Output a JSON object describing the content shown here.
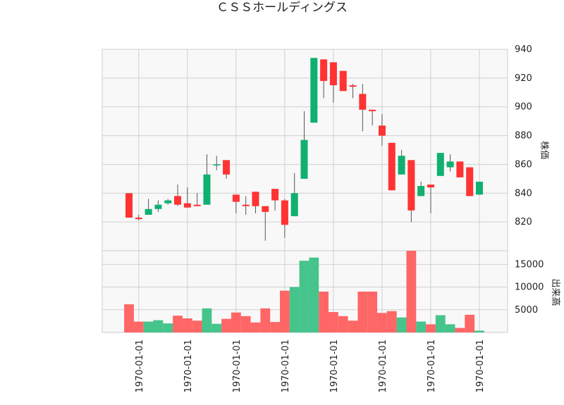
{
  "chart_data": {
    "type": "candlestick",
    "title": "ＣＳＳホールディングス",
    "price_panel": {
      "ylabel": "株価",
      "ylim": [
        800,
        940
      ],
      "yticks": [
        820,
        840,
        860,
        880,
        900,
        920,
        940
      ],
      "grid": true,
      "y_axis_side": "right"
    },
    "volume_panel": {
      "ylabel": "出来高",
      "ylim": [
        0,
        18000
      ],
      "yticks": [
        5000,
        10000,
        15000
      ],
      "grid": true,
      "y_axis_side": "right"
    },
    "x_tick_labels": [
      "1970-01-01",
      "1970-01-01",
      "1970-01-01",
      "1970-01-01",
      "1970-01-01",
      "1970-01-01",
      "1970-01-01",
      "1970-01-01"
    ],
    "x_tick_positions": [
      1,
      6,
      11,
      16,
      21,
      26,
      31,
      36
    ],
    "up_color": "#10b070",
    "down_color": "#ff3333",
    "up_volume_color": "#45c48c",
    "down_volume_color": "#ff6666",
    "candles": [
      {
        "open": 840,
        "high": 840,
        "low": 823,
        "close": 823,
        "volume": 6200
      },
      {
        "open": 823,
        "high": 825,
        "low": 821,
        "close": 822,
        "volume": 2400
      },
      {
        "open": 825,
        "high": 836,
        "low": 825,
        "close": 829,
        "volume": 2400
      },
      {
        "open": 829,
        "high": 835,
        "low": 827,
        "close": 832,
        "volume": 2700
      },
      {
        "open": 833,
        "high": 836,
        "low": 832,
        "close": 835,
        "volume": 2000
      },
      {
        "open": 838,
        "high": 846,
        "low": 831,
        "close": 832,
        "volume": 3700
      },
      {
        "open": 833,
        "high": 844,
        "low": 830,
        "close": 830,
        "volume": 3100
      },
      {
        "open": 832,
        "high": 840,
        "low": 831,
        "close": 831,
        "volume": 2600
      },
      {
        "open": 832,
        "high": 867,
        "low": 832,
        "close": 853,
        "volume": 5300
      },
      {
        "open": 860,
        "high": 866,
        "low": 856,
        "close": 860,
        "volume": 1900
      },
      {
        "open": 863,
        "high": 863,
        "low": 850,
        "close": 853,
        "volume": 3000
      },
      {
        "open": 839,
        "high": 839,
        "low": 826,
        "close": 834,
        "volume": 4400
      },
      {
        "open": 832,
        "high": 838,
        "low": 825,
        "close": 831,
        "volume": 3600
      },
      {
        "open": 841,
        "high": 841,
        "low": 826,
        "close": 831,
        "volume": 2200
      },
      {
        "open": 831,
        "high": 831,
        "low": 807,
        "close": 827,
        "volume": 5300
      },
      {
        "open": 843,
        "high": 843,
        "low": 828,
        "close": 835,
        "volume": 2300
      },
      {
        "open": 835,
        "high": 836,
        "low": 809,
        "close": 818,
        "volume": 9200
      },
      {
        "open": 824,
        "high": 854,
        "low": 824,
        "close": 840,
        "volume": 10000
      },
      {
        "open": 850,
        "high": 897,
        "low": 850,
        "close": 877,
        "volume": 15800
      },
      {
        "open": 889,
        "high": 934,
        "low": 889,
        "close": 934,
        "volume": 16500
      },
      {
        "open": 933,
        "high": 933,
        "low": 906,
        "close": 918,
        "volume": 9000
      },
      {
        "open": 931,
        "high": 931,
        "low": 903,
        "close": 915,
        "volume": 4500
      },
      {
        "open": 925,
        "high": 925,
        "low": 911,
        "close": 911,
        "volume": 3600
      },
      {
        "open": 915,
        "high": 916,
        "low": 906,
        "close": 914,
        "volume": 2600
      },
      {
        "open": 909,
        "high": 916,
        "low": 883,
        "close": 898,
        "volume": 9000
      },
      {
        "open": 898,
        "high": 898,
        "low": 887,
        "close": 897,
        "volume": 9000
      },
      {
        "open": 887,
        "high": 895,
        "low": 873,
        "close": 880,
        "volume": 4300
      },
      {
        "open": 875,
        "high": 875,
        "low": 842,
        "close": 842,
        "volume": 4700
      },
      {
        "open": 853,
        "high": 870,
        "low": 853,
        "close": 866,
        "volume": 3300
      },
      {
        "open": 863,
        "high": 863,
        "low": 820,
        "close": 828,
        "volume": 18200
      },
      {
        "open": 838,
        "high": 848,
        "low": 838,
        "close": 845,
        "volume": 2400
      },
      {
        "open": 846,
        "high": 846,
        "low": 826,
        "close": 844,
        "volume": 1800
      },
      {
        "open": 852,
        "high": 868,
        "low": 852,
        "close": 868,
        "volume": 3800
      },
      {
        "open": 858,
        "high": 867,
        "low": 855,
        "close": 862,
        "volume": 1800
      },
      {
        "open": 862,
        "high": 862,
        "low": 851,
        "close": 851,
        "volume": 1000
      },
      {
        "open": 858,
        "high": 858,
        "low": 838,
        "close": 838,
        "volume": 3900
      },
      {
        "open": 839,
        "high": 848,
        "low": 839,
        "close": 848,
        "volume": 400
      }
    ]
  }
}
